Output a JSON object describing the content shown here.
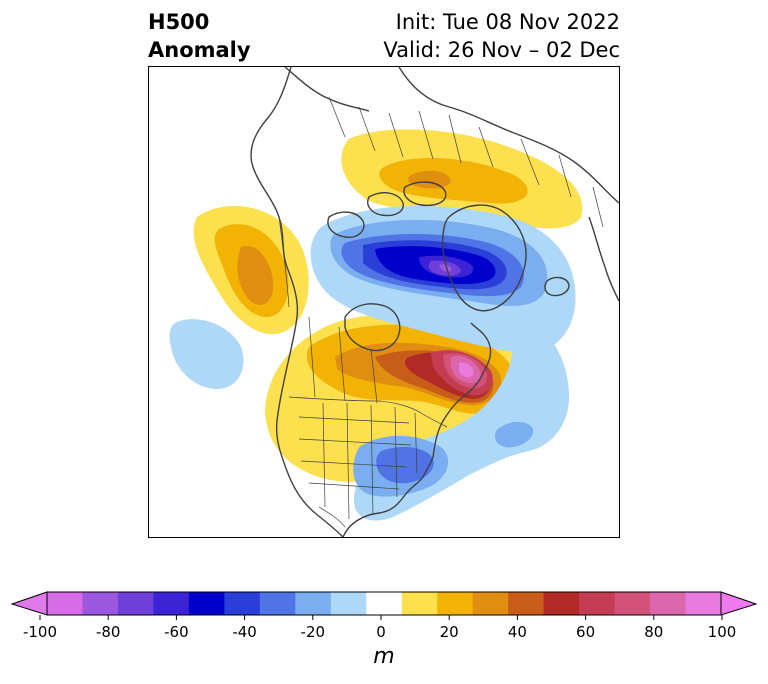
{
  "title": {
    "left_line1": "H500",
    "left_line2": "Anomaly",
    "right_line1": "Init: Tue 08 Nov 2022",
    "right_line2": "Valid: 26 Nov – 02 Dec"
  },
  "colorbar": {
    "unit": "m",
    "min": -100,
    "max": 100,
    "step": 10,
    "extend": "both",
    "ticks": [
      "-100",
      "-80",
      "-60",
      "-40",
      "-20",
      "0",
      "20",
      "40",
      "60",
      "80",
      "100"
    ],
    "tick_values": [
      -100,
      -80,
      -60,
      -40,
      -20,
      0,
      20,
      40,
      60,
      80,
      100
    ],
    "colors": [
      "#d66de6",
      "#9b57e0",
      "#6f3fda",
      "#3c24d6",
      "#0000cc",
      "#2a3fd8",
      "#5074e6",
      "#7aaef0",
      "#aed8f8",
      "#ffffff",
      "#fce04e",
      "#f2b305",
      "#e08e12",
      "#c85d1a",
      "#b22a26",
      "#c43c52",
      "#d2527a",
      "#da66ac",
      "#e77be0"
    ],
    "min_color": "#e07aeb",
    "max_color": "#ee7bee"
  },
  "map": {
    "region": "North America / Arctic",
    "features": [
      "coastlines",
      "country-borders",
      "state-borders"
    ]
  }
}
